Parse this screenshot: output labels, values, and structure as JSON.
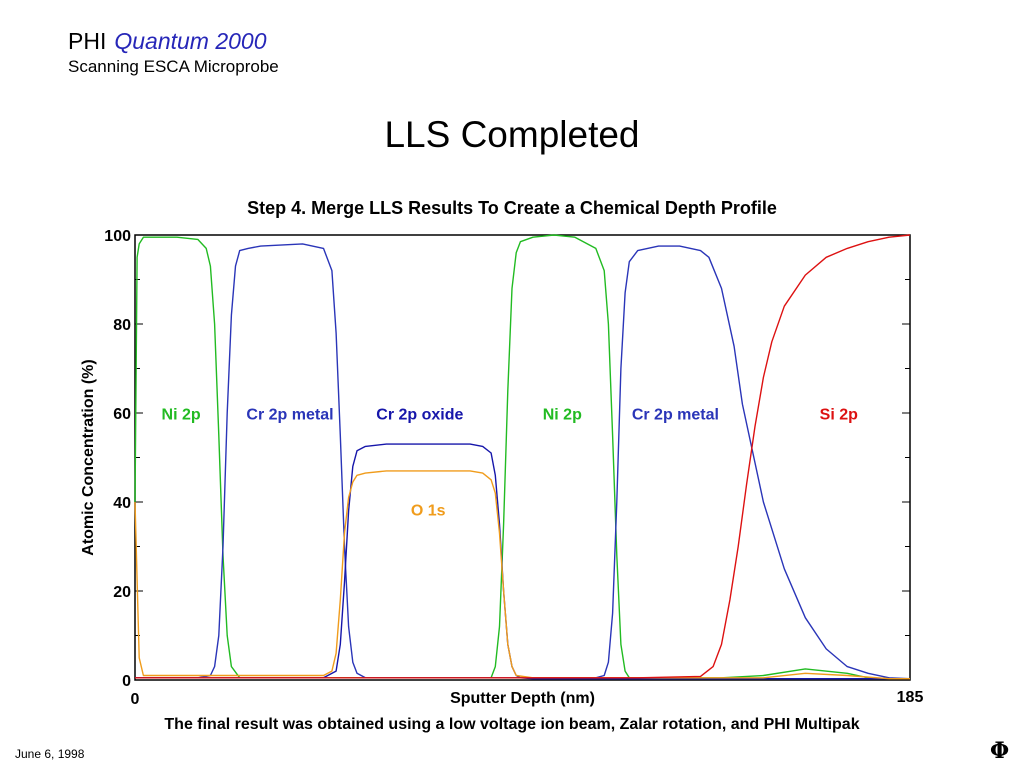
{
  "header": {
    "brand": "PHI",
    "product": "Quantum 2000",
    "subtitle": "Scanning ESCA Microprobe"
  },
  "slide_title": "LLS Completed",
  "footer": {
    "caption": "The final result was obtained using a low voltage ion beam, Zalar rotation, and PHI Multipak",
    "date": "June 6, 1998",
    "logo": "Φ"
  },
  "chart_data": {
    "type": "line",
    "title": "Step 4.  Merge LLS Results To Create a Chemical Depth Profile",
    "xlabel": "Sputter Depth (nm)",
    "ylabel": "Atomic Concentration (%)",
    "xlim": [
      0,
      185
    ],
    "ylim": [
      0,
      100
    ],
    "x_tick_labels": [
      "0",
      "185"
    ],
    "y_tick_labels": [
      "0",
      "20",
      "40",
      "60",
      "80",
      "100"
    ],
    "grid": false,
    "series": [
      {
        "name": "Ni 2p",
        "color": "#22bb22",
        "x": [
          0,
          0.5,
          1,
          2,
          5,
          10,
          15,
          17,
          18,
          19,
          20,
          21,
          22,
          23,
          25,
          30,
          40,
          50,
          60,
          70,
          80,
          85,
          86,
          87,
          88,
          89,
          90,
          91,
          92,
          95,
          100,
          105,
          110,
          112,
          113,
          114,
          115,
          116,
          117,
          118,
          120,
          130,
          140,
          150,
          160,
          170,
          175,
          180,
          185
        ],
        "y": [
          40,
          95,
          98,
          99.5,
          99.5,
          99.5,
          99,
          97,
          93,
          80,
          55,
          28,
          10,
          3,
          0.5,
          0.5,
          0.5,
          0.5,
          0.5,
          0.5,
          0.5,
          0.5,
          3,
          12,
          35,
          65,
          88,
          96,
          98.5,
          99.5,
          100,
          99.5,
          97,
          92,
          80,
          55,
          28,
          8,
          2,
          0.5,
          0.5,
          0.5,
          0.5,
          1,
          2.5,
          1.5,
          0.5,
          0.3,
          0.3
        ]
      },
      {
        "name": "Cr 2p metal",
        "color": "#2a35b8",
        "x": [
          0,
          15,
          18,
          19,
          20,
          21,
          22,
          23,
          24,
          25,
          27,
          30,
          40,
          45,
          47,
          48,
          49,
          50,
          51,
          52,
          53,
          55,
          60,
          80,
          100,
          110,
          112,
          113,
          114,
          115,
          116,
          117,
          118,
          120,
          125,
          130,
          135,
          137,
          140,
          143,
          145,
          150,
          155,
          160,
          165,
          170,
          175,
          180,
          185
        ],
        "y": [
          0.5,
          0.5,
          1,
          3,
          10,
          30,
          60,
          82,
          93,
          96.5,
          97,
          97.5,
          98,
          97,
          92,
          78,
          55,
          30,
          12,
          4,
          1.5,
          0.5,
          0.5,
          0.5,
          0.5,
          0.5,
          1,
          4,
          15,
          40,
          70,
          87,
          94,
          96.5,
          97.5,
          97.5,
          96.5,
          95,
          88,
          75,
          62,
          40,
          25,
          14,
          7,
          3,
          1.5,
          0.5,
          0.3
        ]
      },
      {
        "name": "Cr 2p oxide",
        "color": "#1616aa",
        "x": [
          0,
          45,
          48,
          49,
          50,
          51,
          52,
          53,
          55,
          60,
          70,
          80,
          83,
          85,
          86,
          87,
          88,
          89,
          90,
          91,
          92,
          95,
          185
        ],
        "y": [
          0.5,
          0.5,
          2,
          8,
          22,
          38,
          48,
          51.5,
          52.5,
          53,
          53,
          53,
          52.5,
          51,
          46,
          35,
          20,
          8,
          3,
          1,
          0.5,
          0.3,
          0.3
        ]
      },
      {
        "name": "O 1s",
        "color": "#f09c1c",
        "x": [
          0,
          1,
          2,
          10,
          30,
          45,
          47,
          48,
          49,
          50,
          51,
          52,
          53,
          55,
          60,
          70,
          80,
          83,
          85,
          86,
          87,
          88,
          89,
          90,
          91,
          95,
          150,
          160,
          170,
          180,
          185
        ],
        "y": [
          40,
          5,
          1,
          1,
          1,
          1,
          2,
          6,
          18,
          33,
          41,
          44.5,
          46,
          46.5,
          47,
          47,
          47,
          46.5,
          45,
          42,
          33,
          20,
          8,
          3,
          1,
          0.5,
          0.5,
          1.5,
          1,
          0.3,
          0.3
        ]
      },
      {
        "name": "Si 2p",
        "color": "#dd1111",
        "x": [
          0,
          120,
          135,
          138,
          140,
          142,
          144,
          146,
          148,
          150,
          152,
          155,
          160,
          165,
          170,
          175,
          180,
          185
        ],
        "y": [
          0.5,
          0.5,
          0.8,
          3,
          8,
          18,
          30,
          44,
          57,
          68,
          76,
          84,
          91,
          95,
          97,
          98.5,
          99.5,
          100
        ]
      }
    ],
    "annotations": [
      {
        "text": "Ni 2p",
        "color": "#22bb22",
        "x": 11,
        "y": 58.5
      },
      {
        "text": "Cr 2p metal",
        "color": "#2a35b8",
        "x": 37,
        "y": 58.5
      },
      {
        "text": "Cr 2p oxide",
        "color": "#1616aa",
        "x": 68,
        "y": 58.5
      },
      {
        "text": "Ni 2p",
        "color": "#22bb22",
        "x": 102,
        "y": 58.5
      },
      {
        "text": "Cr 2p metal",
        "color": "#2a35b8",
        "x": 129,
        "y": 58.5
      },
      {
        "text": "Si 2p",
        "color": "#dd1111",
        "x": 168,
        "y": 58.5
      },
      {
        "text": "O 1s",
        "color": "#f09c1c",
        "x": 70,
        "y": 37
      }
    ]
  }
}
